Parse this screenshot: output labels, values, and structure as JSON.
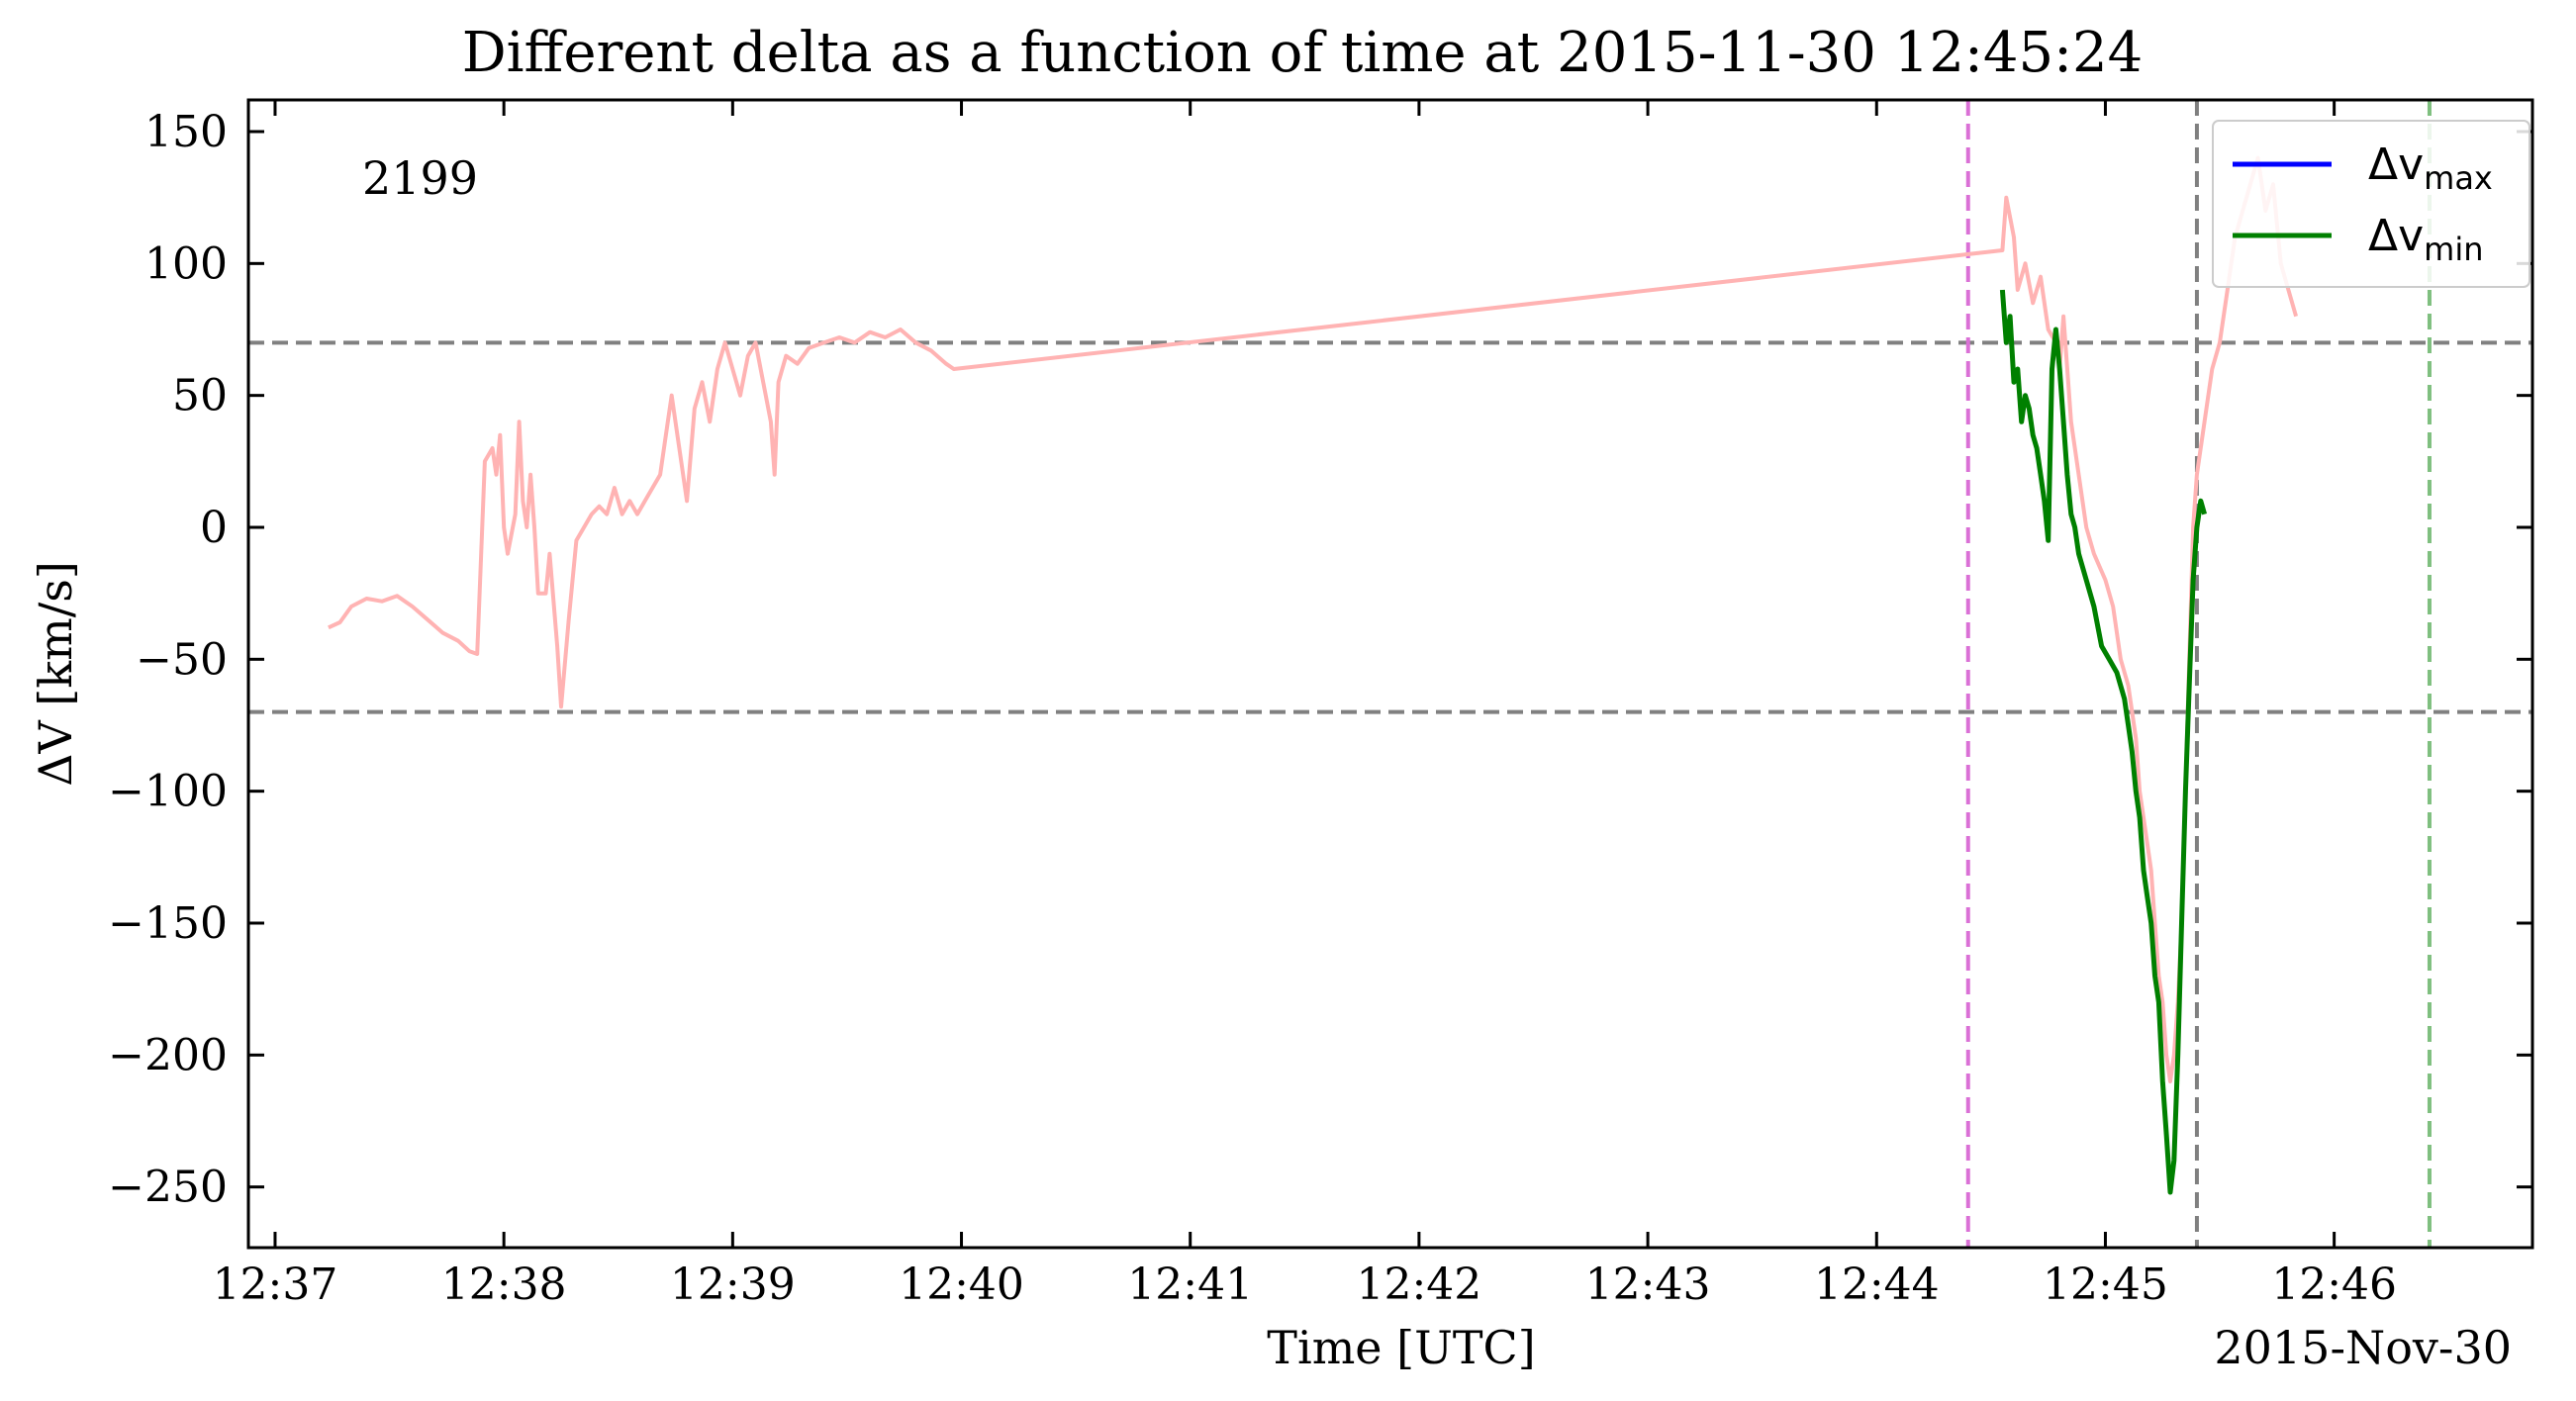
{
  "chart_data": {
    "type": "line",
    "title": "Different delta as a function of time at 2015-11-30 12:45:24",
    "xlabel": "Time [UTC]",
    "ylabel": "ΔV [km/s]",
    "date_label": "2015-Nov-30",
    "annotation": {
      "text": "2199",
      "color": "#ff0000"
    },
    "xlim": [
      "12:36:53",
      "12:46:52"
    ],
    "ylim": [
      -273,
      162
    ],
    "x_ticks": [
      "12:37",
      "12:38",
      "12:39",
      "12:40",
      "12:41",
      "12:42",
      "12:43",
      "12:44",
      "12:45",
      "12:46"
    ],
    "y_ticks": [
      150,
      100,
      50,
      0,
      -50,
      -100,
      -150,
      -200,
      -250
    ],
    "y_tick_labels": [
      "150",
      "100",
      "50",
      "0",
      "−50",
      "−100",
      "−150",
      "−200",
      "−250"
    ],
    "legend": {
      "placement": "top-right",
      "entries": [
        {
          "base": "Δv",
          "sub": "max",
          "color": "#0000ff"
        },
        {
          "base": "Δv",
          "sub": "min",
          "color": "#008000"
        }
      ]
    },
    "hlines": [
      {
        "y": 70,
        "color": "#808080",
        "style": "dashed"
      },
      {
        "y": -70,
        "color": "#808080",
        "style": "dashed"
      }
    ],
    "vlines": [
      {
        "x": "12:44:24",
        "color": "#da70d6",
        "style": "dashed"
      },
      {
        "x": "12:45:24",
        "color": "#808080",
        "style": "dashed"
      },
      {
        "x": "12:46:25",
        "color": "#7fbf7f",
        "style": "dashed"
      }
    ],
    "series": [
      {
        "color": "#ffb3b3",
        "points": [
          [
            "12:37:14",
            -38
          ],
          [
            "12:37:17",
            -36
          ],
          [
            "12:37:20",
            -30
          ],
          [
            "12:37:24",
            -27
          ],
          [
            "12:37:28",
            -28
          ],
          [
            "12:37:32",
            -26
          ],
          [
            "12:37:36",
            -30
          ],
          [
            "12:37:40",
            -35
          ],
          [
            "12:37:44",
            -40
          ],
          [
            "12:37:48",
            -43
          ],
          [
            "12:37:51",
            -47
          ],
          [
            "12:37:53",
            -48
          ],
          [
            "12:37:55",
            25
          ],
          [
            "12:37:57",
            30
          ],
          [
            "12:37:58",
            20
          ],
          [
            "12:37:59",
            35
          ],
          [
            "12:38:00",
            0
          ],
          [
            "12:38:01",
            -10
          ],
          [
            "12:38:03",
            5
          ],
          [
            "12:38:04",
            40
          ],
          [
            "12:38:05",
            10
          ],
          [
            "12:38:06",
            0
          ],
          [
            "12:38:07",
            20
          ],
          [
            "12:38:08",
            0
          ],
          [
            "12:38:09",
            -25
          ],
          [
            "12:38:11",
            -25
          ],
          [
            "12:38:12",
            -10
          ],
          [
            "12:38:14",
            -45
          ],
          [
            "12:38:15",
            -68
          ],
          [
            "12:38:17",
            -35
          ],
          [
            "12:38:19",
            -5
          ],
          [
            "12:38:21",
            0
          ],
          [
            "12:38:23",
            5
          ],
          [
            "12:38:25",
            8
          ],
          [
            "12:38:27",
            5
          ],
          [
            "12:38:29",
            15
          ],
          [
            "12:38:31",
            5
          ],
          [
            "12:38:33",
            10
          ],
          [
            "12:38:35",
            5
          ],
          [
            "12:38:37",
            10
          ],
          [
            "12:38:39",
            15
          ],
          [
            "12:38:41",
            20
          ],
          [
            "12:38:43",
            40
          ],
          [
            "12:38:44",
            50
          ],
          [
            "12:38:46",
            30
          ],
          [
            "12:38:48",
            10
          ],
          [
            "12:38:50",
            45
          ],
          [
            "12:38:52",
            55
          ],
          [
            "12:38:54",
            40
          ],
          [
            "12:38:56",
            60
          ],
          [
            "12:38:58",
            70
          ],
          [
            "12:39:00",
            60
          ],
          [
            "12:39:02",
            50
          ],
          [
            "12:39:04",
            65
          ],
          [
            "12:39:06",
            70
          ],
          [
            "12:39:08",
            55
          ],
          [
            "12:39:10",
            40
          ],
          [
            "12:39:11",
            20
          ],
          [
            "12:39:12",
            55
          ],
          [
            "12:39:14",
            65
          ],
          [
            "12:39:17",
            62
          ],
          [
            "12:39:20",
            68
          ],
          [
            "12:39:24",
            70
          ],
          [
            "12:39:28",
            72
          ],
          [
            "12:39:32",
            70
          ],
          [
            "12:39:36",
            74
          ],
          [
            "12:39:40",
            72
          ],
          [
            "12:39:44",
            75
          ],
          [
            "12:39:48",
            70
          ],
          [
            "12:39:52",
            67
          ],
          [
            "12:39:56",
            62
          ],
          [
            "12:39:58",
            60
          ],
          [
            "12:44:33",
            105
          ],
          [
            "12:44:34",
            125
          ],
          [
            "12:44:36",
            110
          ],
          [
            "12:44:37",
            90
          ],
          [
            "12:44:39",
            100
          ],
          [
            "12:44:41",
            85
          ],
          [
            "12:44:43",
            95
          ],
          [
            "12:44:45",
            75
          ],
          [
            "12:44:47",
            70
          ],
          [
            "12:44:48",
            60
          ],
          [
            "12:44:49",
            80
          ],
          [
            "12:44:51",
            40
          ],
          [
            "12:44:53",
            20
          ],
          [
            "12:44:55",
            0
          ],
          [
            "12:44:57",
            -10
          ],
          [
            "12:45:00",
            -20
          ],
          [
            "12:45:02",
            -30
          ],
          [
            "12:45:04",
            -50
          ],
          [
            "12:45:06",
            -60
          ],
          [
            "12:45:08",
            -80
          ],
          [
            "12:45:09",
            -100
          ],
          [
            "12:45:10",
            -110
          ],
          [
            "12:45:12",
            -130
          ],
          [
            "12:45:13",
            -150
          ],
          [
            "12:45:14",
            -170
          ],
          [
            "12:45:15",
            -180
          ],
          [
            "12:45:16",
            -200
          ],
          [
            "12:45:17",
            -210
          ],
          [
            "12:45:18",
            -200
          ],
          [
            "12:45:19",
            -180
          ],
          [
            "12:45:20",
            -150
          ],
          [
            "12:45:21",
            -100
          ],
          [
            "12:45:22",
            -50
          ],
          [
            "12:45:23",
            0
          ],
          [
            "12:45:24",
            20
          ],
          [
            "12:45:26",
            40
          ],
          [
            "12:45:28",
            60
          ],
          [
            "12:45:30",
            70
          ],
          [
            "12:45:32",
            90
          ],
          [
            "12:45:34",
            110
          ],
          [
            "12:45:36",
            120
          ],
          [
            "12:45:38",
            130
          ],
          [
            "12:45:40",
            140
          ],
          [
            "12:45:42",
            120
          ],
          [
            "12:45:44",
            130
          ],
          [
            "12:45:46",
            100
          ],
          [
            "12:45:48",
            90
          ],
          [
            "12:45:50",
            80
          ]
        ]
      },
      {
        "name": "Δvmin",
        "color": "#008000",
        "points": [
          [
            "12:44:33",
            90
          ],
          [
            "12:44:34",
            70
          ],
          [
            "12:44:35",
            80
          ],
          [
            "12:44:36",
            55
          ],
          [
            "12:44:37",
            60
          ],
          [
            "12:44:38",
            40
          ],
          [
            "12:44:39",
            50
          ],
          [
            "12:44:40",
            45
          ],
          [
            "12:44:41",
            35
          ],
          [
            "12:44:42",
            30
          ],
          [
            "12:44:43",
            20
          ],
          [
            "12:44:44",
            10
          ],
          [
            "12:44:45",
            -5
          ],
          [
            "12:44:46",
            60
          ],
          [
            "12:44:47",
            75
          ],
          [
            "12:44:48",
            60
          ],
          [
            "12:44:49",
            40
          ],
          [
            "12:44:50",
            20
          ],
          [
            "12:44:51",
            5
          ],
          [
            "12:44:52",
            0
          ],
          [
            "12:44:53",
            -10
          ],
          [
            "12:44:55",
            -20
          ],
          [
            "12:44:57",
            -30
          ],
          [
            "12:44:59",
            -45
          ],
          [
            "12:45:01",
            -50
          ],
          [
            "12:45:03",
            -55
          ],
          [
            "12:45:05",
            -65
          ],
          [
            "12:45:06",
            -75
          ],
          [
            "12:45:07",
            -85
          ],
          [
            "12:45:08",
            -100
          ],
          [
            "12:45:09",
            -110
          ],
          [
            "12:45:10",
            -130
          ],
          [
            "12:45:11",
            -140
          ],
          [
            "12:45:12",
            -150
          ],
          [
            "12:45:13",
            -170
          ],
          [
            "12:45:14",
            -180
          ],
          [
            "12:45:15",
            -210
          ],
          [
            "12:45:16",
            -230
          ],
          [
            "12:45:17",
            -252
          ],
          [
            "12:45:18",
            -240
          ],
          [
            "12:45:19",
            -200
          ],
          [
            "12:45:20",
            -150
          ],
          [
            "12:45:21",
            -100
          ],
          [
            "12:45:22",
            -60
          ],
          [
            "12:45:23",
            -20
          ],
          [
            "12:45:24",
            0
          ],
          [
            "12:45:25",
            10
          ],
          [
            "12:45:26",
            5
          ]
        ]
      }
    ]
  }
}
